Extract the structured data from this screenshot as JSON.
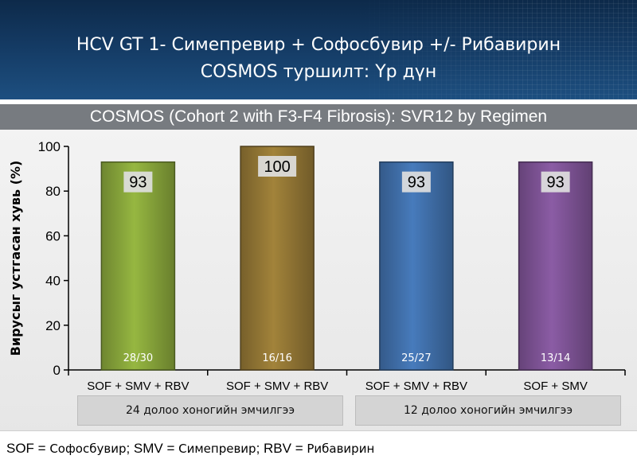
{
  "header": {
    "title_line_1": "HCV GT 1- Симепревир + Софосбувир +/- Рибавирин",
    "title_line_2": "COSMOS туршилт: Үр дүн"
  },
  "chart_data": {
    "type": "bar",
    "title": "COSMOS (Cohort 2 with F3-F4 Fibrosis): SVR12 by Regimen",
    "ylabel": "Вирусыг устгасан хувь (%)",
    "xlabel": "",
    "ylim": [
      0,
      100
    ],
    "yticks": [
      0,
      20,
      40,
      60,
      80,
      100
    ],
    "grid": false,
    "categories": [
      "SOF + SMV + RBV",
      "SOF + SMV + RBV",
      "SOF + SMV + RBV",
      "SOF + SMV"
    ],
    "values": [
      93,
      100,
      93,
      93
    ],
    "fractions": [
      "28/30",
      "16/16",
      "25/27",
      "13/14"
    ],
    "colors": [
      "#86a33a",
      "#917534",
      "#3f6ea8",
      "#7c5293"
    ],
    "groups": [
      {
        "label": "24 долоо хоногийн эмчилгээ",
        "categories_index": [
          0,
          1
        ]
      },
      {
        "label": "12 долоо хоногийн эмчилгээ",
        "categories_index": [
          2,
          3
        ]
      }
    ]
  },
  "footnote": {
    "sof_abbr": "SOF = ",
    "sof_name": "Софосбувир",
    "smv_abbr": "; SMV = ",
    "smv_name": "Симепревир",
    "rbv_abbr": "; RBV = ",
    "rbv_name": "Рибавирин"
  }
}
